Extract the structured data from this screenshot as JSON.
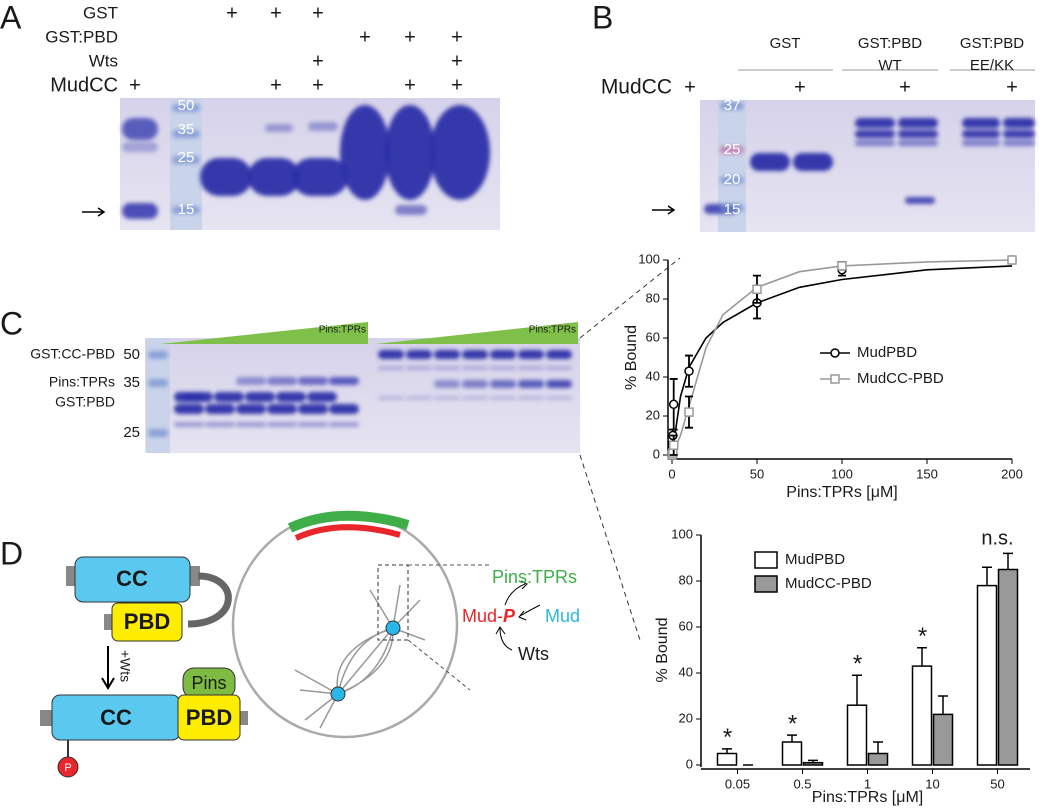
{
  "panels": {
    "A": {
      "letter": "A",
      "rows": [
        {
          "label": "GST",
          "marks": [
            null,
            "+",
            "+",
            "+",
            null,
            null,
            null
          ]
        },
        {
          "label": "GST:PBD",
          "marks": [
            null,
            null,
            null,
            null,
            "+",
            "+",
            "+"
          ]
        },
        {
          "label": "Wts",
          "marks": [
            null,
            null,
            null,
            "+",
            null,
            null,
            "+"
          ]
        },
        {
          "label": "MudCC",
          "marks": [
            "+",
            null,
            "+",
            "+",
            null,
            "+",
            "+"
          ]
        }
      ],
      "markers": [
        50,
        35,
        25,
        15
      ]
    },
    "B": {
      "letter": "B",
      "headers": [
        [
          "GST"
        ],
        [
          "GST:PBD",
          "WT"
        ],
        [
          "GST:PBD",
          "EE/KK"
        ]
      ],
      "row": {
        "label": "MudCC",
        "marks": [
          "+",
          null,
          "+",
          null,
          "+",
          null,
          "+"
        ]
      },
      "markers": [
        37,
        25,
        20,
        15
      ]
    },
    "C": {
      "letter": "C",
      "labels": [
        "GST:CC-PBD",
        "Pins:TPRs",
        "GST:PBD"
      ],
      "markers": [
        50,
        35,
        25
      ],
      "gradient_labels": [
        "Pins:TPRs",
        "Pins:TPRs"
      ]
    },
    "D": {
      "letter": "D",
      "cc_top": "CC",
      "pbd_top": "PBD",
      "wts_arrow": "+Wts",
      "pins": "Pins",
      "cc_bottom": "CC",
      "pbd_bottom": "PBD",
      "phospho": "P",
      "pins_tprs": "Pins:TPRs",
      "mud_p_prefix": "Mud-",
      "mud_p_suffix": "P",
      "mud": "Mud",
      "wts": "Wts"
    }
  },
  "chart_data": [
    {
      "type": "scatter",
      "x_label": "Pins:TPRs [μM]",
      "y_label": "% Bound",
      "xlim": [
        0,
        200
      ],
      "xticks": [
        0,
        50,
        100,
        150,
        200
      ],
      "ylim": [
        0,
        100
      ],
      "yticks": [
        0,
        20,
        40,
        60,
        80,
        100
      ],
      "legend": "right",
      "series": [
        {
          "name": "MudPBD",
          "color": "#000000",
          "marker": "circle",
          "x": [
            0.05,
            0.5,
            1,
            10,
            50,
            100,
            200
          ],
          "values": [
            5,
            10,
            26,
            43,
            78,
            95,
            100
          ],
          "errors": [
            2,
            3,
            13,
            8,
            8,
            3,
            0
          ],
          "fit_x": [
            0,
            5,
            10,
            20,
            30,
            50,
            75,
            100,
            150,
            200
          ],
          "fit_values": [
            0,
            30,
            45,
            60,
            68,
            78,
            86,
            90,
            95,
            97
          ]
        },
        {
          "name": "MudCC-PBD",
          "color": "#999999",
          "marker": "square",
          "x": [
            0.05,
            0.5,
            1,
            10,
            50,
            100,
            200
          ],
          "values": [
            0,
            1,
            5,
            22,
            85,
            97,
            100
          ],
          "errors": [
            0,
            1,
            5,
            8,
            7,
            2,
            0
          ],
          "fit_x": [
            0,
            5,
            10,
            20,
            30,
            50,
            75,
            100,
            150,
            200
          ],
          "fit_values": [
            0,
            10,
            25,
            55,
            72,
            86,
            94,
            97,
            99,
            100
          ]
        }
      ]
    },
    {
      "type": "bar",
      "x_label": "Pins:TPRs [μM]",
      "y_label": "% Bound",
      "categories": [
        "0.05",
        "0.5",
        "1",
        "10",
        "50"
      ],
      "ylim": [
        0,
        100
      ],
      "yticks": [
        0,
        20,
        40,
        60,
        80,
        100
      ],
      "legend": "upper left",
      "annotations": [
        "*",
        "*",
        "*",
        "*",
        "n.s."
      ],
      "series": [
        {
          "name": "MudPBD",
          "color": "#ffffff",
          "values": [
            5,
            10,
            26,
            43,
            78
          ],
          "errors": [
            2,
            3,
            13,
            8,
            8
          ]
        },
        {
          "name": "MudCC-PBD",
          "color": "#999999",
          "values": [
            0,
            1,
            5,
            22,
            85
          ],
          "errors": [
            0,
            1,
            5,
            8,
            7
          ]
        }
      ]
    }
  ]
}
